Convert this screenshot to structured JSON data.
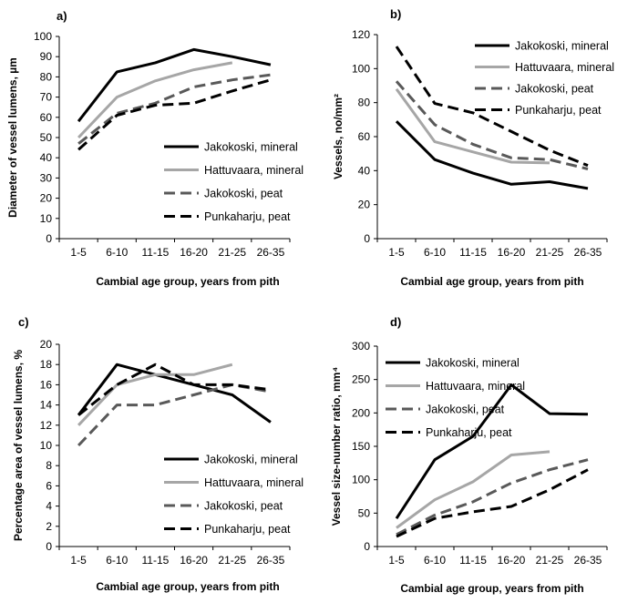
{
  "chart_data": [
    {
      "type": "line",
      "panel": "a)",
      "categories": [
        "1-5",
        "6-10",
        "11-15",
        "16-20",
        "21-25",
        "26-35"
      ],
      "xlabel": "Cambial age group, years from pith",
      "ylabel": "Diameter of vessel lumens, µm",
      "ylim": [
        0,
        100
      ],
      "yticks": [
        0,
        10,
        20,
        30,
        40,
        50,
        60,
        70,
        80,
        90,
        100
      ],
      "legend_position": "bottom-right",
      "series": [
        {
          "name": "Jakokoski, mineral",
          "values": [
            58,
            82.5,
            87,
            93.5,
            90,
            86
          ]
        },
        {
          "name": "Hattuvaara, mineral",
          "values": [
            50,
            70,
            78,
            83.5,
            87,
            null
          ]
        },
        {
          "name": "Jakokoski, peat",
          "values": [
            47,
            62,
            67,
            75,
            78.5,
            81
          ]
        },
        {
          "name": "Punkaharju, peat",
          "values": [
            44,
            61,
            66,
            67,
            73,
            78.5
          ]
        }
      ]
    },
    {
      "type": "line",
      "panel": "b)",
      "categories": [
        "1-5",
        "6-10",
        "11-15",
        "16-20",
        "21-25",
        "26-35"
      ],
      "xlabel": "Cambial age group, years from pith",
      "ylabel": "Vessels, no/mm²",
      "ylim": [
        0,
        120
      ],
      "yticks": [
        0,
        20,
        40,
        60,
        80,
        100,
        120
      ],
      "legend_position": "top-right",
      "series": [
        {
          "name": "Jakokoski, mineral",
          "values": [
            69,
            46.5,
            38.5,
            32,
            33.5,
            29.5
          ]
        },
        {
          "name": "Hattuvaara, mineral",
          "values": [
            88,
            57,
            51,
            45,
            44.5,
            null
          ]
        },
        {
          "name": "Jakokoski, peat",
          "values": [
            92.5,
            67,
            55.5,
            47.5,
            46.5,
            41
          ]
        },
        {
          "name": "Punkaharju, peat",
          "values": [
            113,
            79.5,
            74,
            63,
            52,
            43
          ]
        }
      ]
    },
    {
      "type": "line",
      "panel": "c)",
      "categories": [
        "1-5",
        "6-10",
        "11-15",
        "16-20",
        "21-25",
        "26-35"
      ],
      "xlabel": "Cambial age group, years from pith",
      "ylabel": "Percentage area of vessel lumens, %",
      "ylim": [
        0,
        20
      ],
      "yticks": [
        0,
        2,
        4,
        6,
        8,
        10,
        12,
        14,
        16,
        18,
        20
      ],
      "legend_position": "bottom-right",
      "series": [
        {
          "name": "Jakokoski, mineral",
          "values": [
            13,
            18,
            17,
            16,
            15,
            12.3
          ]
        },
        {
          "name": "Hattuvaara, mineral",
          "values": [
            12,
            16,
            17,
            17,
            18,
            null
          ]
        },
        {
          "name": "Jakokoski, peat",
          "values": [
            10,
            14,
            14,
            15,
            16,
            15.3
          ]
        },
        {
          "name": "Punkaharju, peat",
          "values": [
            13,
            16,
            18,
            16,
            16,
            15.5
          ]
        }
      ]
    },
    {
      "type": "line",
      "panel": "d)",
      "categories": [
        "1-5",
        "6-10",
        "11-15",
        "16-20",
        "21-25",
        "26-35"
      ],
      "xlabel": "Cambial age group, years from pith",
      "ylabel": "Vessel size-number ratio, mm⁴",
      "ylim": [
        0,
        300
      ],
      "yticks": [
        0,
        50,
        100,
        150,
        200,
        250,
        300
      ],
      "legend_position": "top-left",
      "series": [
        {
          "name": "Jakokoski, mineral",
          "values": [
            42,
            130,
            165,
            242,
            199,
            198
          ]
        },
        {
          "name": "Hattuvaara, mineral",
          "values": [
            28,
            70,
            97,
            137,
            142,
            null
          ]
        },
        {
          "name": "Jakokoski, peat",
          "values": [
            18,
            47,
            67,
            95,
            115,
            130
          ]
        },
        {
          "name": "Punkaharju, peat",
          "values": [
            15,
            42,
            52,
            60,
            85,
            115
          ]
        }
      ]
    }
  ],
  "series_styles": [
    {
      "color": "#000000",
      "dash": "",
      "width": 3
    },
    {
      "color": "#a6a6a6",
      "dash": "",
      "width": 3
    },
    {
      "color": "#595959",
      "dash": "12 6",
      "width": 3
    },
    {
      "color": "#000000",
      "dash": "12 6",
      "width": 3
    }
  ]
}
